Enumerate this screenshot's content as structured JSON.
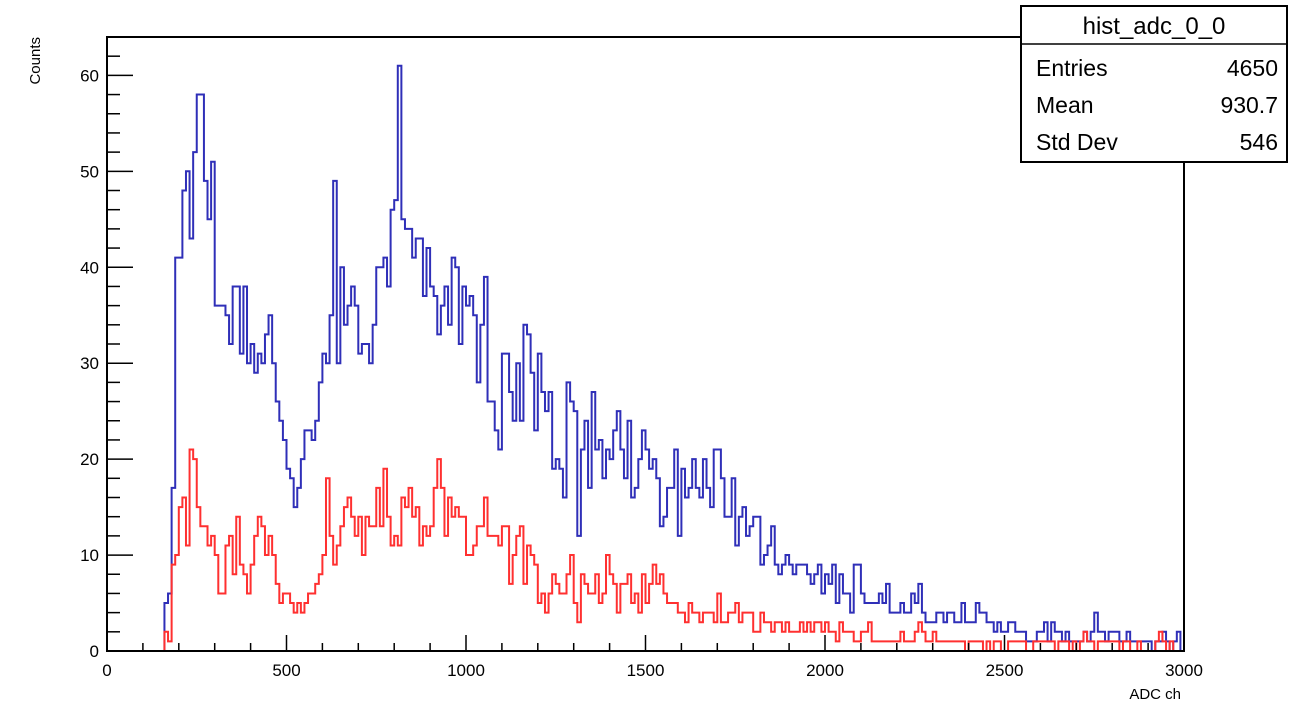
{
  "chart_data": {
    "type": "histogram",
    "xlabel": "ADC ch",
    "ylabel": "Counts",
    "xlim": [
      0,
      3000
    ],
    "ylim": [
      0,
      64
    ],
    "xticks": [
      0,
      500,
      1000,
      1500,
      2000,
      2500,
      3000
    ],
    "yticks": [
      0,
      10,
      20,
      30,
      40,
      50,
      60
    ],
    "xtick_labels": [
      "0",
      "500",
      "1000",
      "1500",
      "2000",
      "2500",
      "3000"
    ],
    "ytick_labels": [
      "0",
      "10",
      "20",
      "30",
      "40",
      "50",
      "60"
    ],
    "bin_width": 10,
    "stats_box": {
      "title": "hist_adc_0_0",
      "rows": [
        {
          "label": "Entries",
          "value": "4650"
        },
        {
          "label": "Mean",
          "value": "930.7"
        },
        {
          "label": "Std Dev",
          "value": "546"
        }
      ]
    },
    "series": [
      {
        "color": "#2f2fb8",
        "x_start": 0,
        "values": [
          0,
          0,
          0,
          0,
          0,
          0,
          0,
          0,
          0,
          0,
          0,
          0,
          0,
          0,
          0,
          0,
          5,
          6,
          17,
          41,
          41,
          48,
          50,
          43,
          52,
          58,
          58,
          49,
          45,
          51,
          36,
          36,
          36,
          35,
          32,
          38,
          38,
          31,
          38,
          30,
          32,
          29,
          31,
          30,
          33,
          35,
          30,
          26,
          24,
          22,
          19,
          18,
          15,
          17,
          20,
          23,
          23,
          22,
          24,
          28,
          31,
          30,
          35,
          49,
          30,
          40,
          34,
          36,
          38,
          36,
          31,
          32,
          32,
          30,
          34,
          40,
          40,
          41,
          38,
          46,
          47,
          61,
          45,
          44,
          44,
          41,
          43,
          43,
          37,
          42,
          38,
          37,
          33,
          36,
          38,
          34,
          41,
          40,
          32,
          38,
          36,
          37,
          35,
          28,
          34,
          39,
          26,
          26,
          23,
          21,
          31,
          31,
          27,
          24,
          30,
          24,
          34,
          33,
          29,
          23,
          31,
          27,
          25,
          27,
          19,
          20,
          19,
          16,
          28,
          26,
          25,
          12,
          21,
          24,
          17,
          27,
          21,
          22,
          18,
          21,
          20,
          23,
          25,
          21,
          18,
          24,
          16,
          17,
          20,
          23,
          21,
          19,
          20,
          18,
          13,
          14,
          17,
          17,
          21,
          12,
          19,
          16,
          17,
          20,
          17,
          16,
          20,
          17,
          15,
          21,
          21,
          18,
          14,
          14,
          18,
          11,
          14,
          15,
          12,
          13,
          14,
          14,
          9,
          10,
          11,
          13,
          9,
          8,
          9,
          10,
          9,
          8,
          9,
          9,
          9,
          8,
          7,
          8,
          9,
          6,
          8,
          7,
          9,
          5,
          8,
          6,
          6,
          4,
          9,
          9,
          6,
          5,
          5,
          5,
          5,
          6,
          5,
          7,
          4,
          4,
          4,
          5,
          4,
          4,
          6,
          5,
          7,
          4,
          3,
          3,
          3,
          4,
          4,
          3,
          4,
          4,
          3,
          3,
          5,
          3,
          3,
          3,
          5,
          4,
          4,
          3,
          3,
          2,
          3,
          2,
          2,
          3,
          3,
          2,
          2,
          2,
          1,
          1,
          1,
          2,
          2,
          3,
          1,
          3,
          2,
          2,
          1,
          2,
          1,
          1,
          1,
          1,
          2,
          1,
          2,
          4,
          2,
          2,
          1,
          2,
          2,
          2,
          1,
          1,
          2,
          1,
          1,
          1,
          1,
          1,
          1,
          0,
          1,
          1,
          2,
          1,
          0,
          1,
          2
        ]
      },
      {
        "color": "#ff3030",
        "x_start": 0,
        "values": [
          0,
          0,
          0,
          0,
          0,
          0,
          0,
          0,
          0,
          0,
          0,
          0,
          0,
          0,
          0,
          0,
          2,
          1,
          9,
          10,
          15,
          16,
          11,
          21,
          20,
          15,
          13,
          13,
          11,
          12,
          10,
          6,
          6,
          11,
          12,
          8,
          14,
          9,
          8,
          6,
          9,
          12,
          14,
          13,
          10,
          12,
          10,
          7,
          5,
          6,
          6,
          5,
          4,
          5,
          4,
          5,
          6,
          6,
          7,
          8,
          10,
          18,
          12,
          9,
          11,
          13,
          15,
          16,
          14,
          12,
          14,
          10,
          14,
          13,
          13,
          17,
          13,
          19,
          14,
          11,
          12,
          11,
          16,
          15,
          17,
          14,
          15,
          11,
          13,
          12,
          13,
          17,
          20,
          17,
          12,
          16,
          14,
          15,
          14,
          14,
          10,
          10,
          11,
          13,
          13,
          16,
          12,
          12,
          12,
          11,
          13,
          13,
          7,
          10,
          12,
          13,
          7,
          11,
          10,
          9,
          5,
          6,
          4,
          6,
          8,
          7,
          6,
          6,
          8,
          10,
          5,
          3,
          8,
          7,
          6,
          6,
          8,
          5,
          6,
          10,
          8,
          7,
          4,
          7,
          7,
          8,
          5,
          6,
          4,
          8,
          5,
          7,
          9,
          7,
          8,
          6,
          5,
          5,
          5,
          4,
          4,
          3,
          5,
          4,
          4,
          3,
          4,
          4,
          4,
          3,
          6,
          3,
          3,
          4,
          4,
          5,
          3,
          4,
          4,
          4,
          2,
          2,
          4,
          3,
          3,
          2,
          3,
          3,
          2,
          3,
          2,
          2,
          2,
          3,
          2,
          3,
          2,
          3,
          3,
          2,
          3,
          2,
          2,
          1,
          3,
          2,
          2,
          2,
          1,
          1,
          2,
          2,
          3,
          1,
          1,
          1,
          1,
          1,
          1,
          1,
          1,
          2,
          1,
          1,
          1,
          2,
          3,
          2,
          1,
          1,
          2,
          1,
          1,
          1,
          1,
          1,
          1,
          1,
          1,
          0,
          1,
          1,
          1,
          1,
          0,
          1,
          0,
          1,
          1,
          0,
          0,
          1,
          1,
          1,
          1,
          1,
          0,
          0,
          1,
          1,
          1,
          1,
          1,
          1,
          0,
          1,
          1,
          1,
          0,
          1,
          0,
          1,
          2,
          1,
          1,
          0,
          1,
          1,
          1,
          1,
          1,
          1,
          0,
          1,
          1,
          0,
          0,
          1,
          0,
          0,
          0,
          0,
          1,
          2,
          1,
          0,
          1
        ]
      }
    ]
  }
}
